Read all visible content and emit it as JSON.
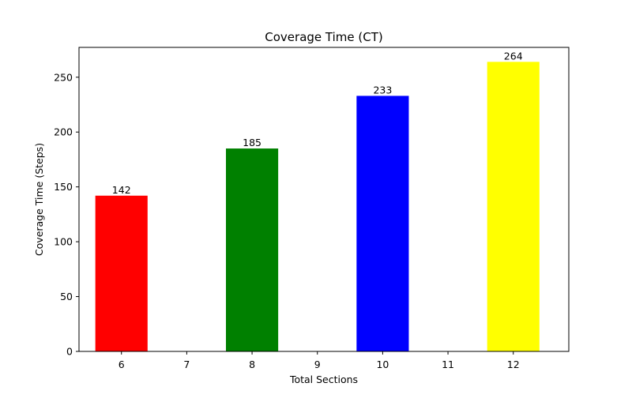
{
  "chart_data": {
    "type": "bar",
    "title": "Coverage Time (CT)",
    "xlabel": "Total Sections",
    "ylabel": "Coverage Time (Steps)",
    "x": [
      6,
      8,
      10,
      12
    ],
    "values": [
      142,
      185,
      233,
      264
    ],
    "data_labels": [
      "142",
      "185",
      "233",
      "264"
    ],
    "bar_colors": [
      "#ff0000",
      "#008000",
      "#0000ff",
      "#ffff00"
    ],
    "xlim": [
      5.35,
      12.85
    ],
    "ylim": [
      0,
      277.2
    ],
    "x_ticks": [
      6,
      7,
      8,
      9,
      10,
      11,
      12
    ],
    "x_tick_labels": [
      "6",
      "7",
      "8",
      "9",
      "10",
      "11",
      "12"
    ],
    "y_ticks": [
      0,
      50,
      100,
      150,
      200,
      250
    ],
    "y_tick_labels": [
      "0",
      "50",
      "100",
      "150",
      "200",
      "250"
    ],
    "bar_width": 0.8,
    "grid": false,
    "legend": "none"
  }
}
